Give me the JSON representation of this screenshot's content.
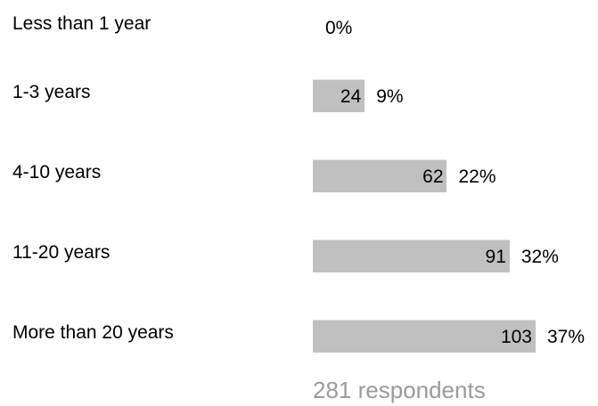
{
  "chart_data": {
    "type": "bar",
    "orientation": "horizontal",
    "categories": [
      "Less than 1 year",
      "1-3 years",
      "4-10 years",
      "11-20 years",
      "More than 20 years"
    ],
    "values": [
      0,
      24,
      62,
      91,
      103
    ],
    "percent_labels": [
      "0%",
      "9%",
      "22%",
      "32%",
      "37%"
    ],
    "count_labels": [
      "",
      "24",
      "62",
      "91",
      "103"
    ],
    "bar_color": "#c0c0c0",
    "total_label": "281 respondents",
    "total_color": "#9a9a9a"
  }
}
